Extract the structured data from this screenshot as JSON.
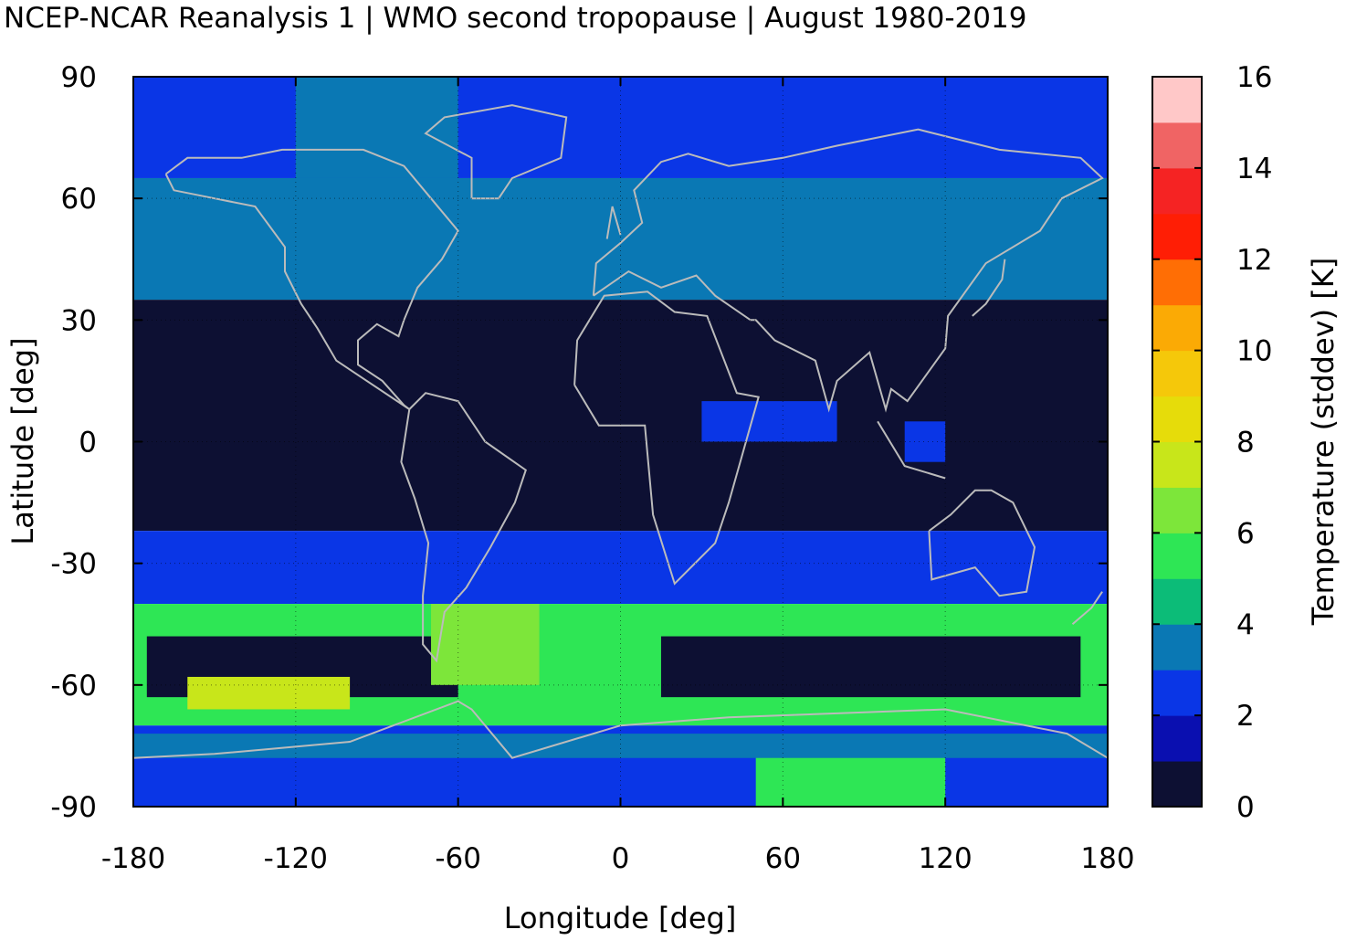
{
  "chart_data": {
    "type": "heatmap",
    "title": "NCEP-NCAR Reanalysis 1 | WMO second tropopause | August 1980-2019",
    "xlabel": "Longitude [deg]",
    "ylabel": "Latitude [deg]",
    "colorbar_label": "Temperature (stddev) [K]",
    "xlim": [
      -180,
      180
    ],
    "ylim": [
      -90,
      90
    ],
    "xticks": [
      "-180",
      "-120",
      "-60",
      "0",
      "60",
      "120",
      "180"
    ],
    "yticks": [
      "-90",
      "-60",
      "-30",
      "0",
      "30",
      "60",
      "90"
    ],
    "colorbar_ticks": [
      "0",
      "2",
      "4",
      "6",
      "8",
      "10",
      "12",
      "14",
      "16"
    ],
    "colorbar_range": [
      0,
      16
    ],
    "grid": true,
    "colormap": [
      "#0d1033",
      "#0a0fb0",
      "#0a36e6",
      "#0a78b4",
      "#0cbc78",
      "#2ee655",
      "#7de63a",
      "#c8e61a",
      "#e6dc0a",
      "#f5c80a",
      "#fbaa05",
      "#ff6e05",
      "#ff1e05",
      "#f52323",
      "#f06464",
      "#ffc8c8"
    ],
    "coastline_color": "#bbbbbb",
    "latitude_bands": [
      {
        "lat_range": [
          65,
          90
        ],
        "value": 2.4
      },
      {
        "lat_range": [
          35,
          65
        ],
        "value": 3.2
      },
      {
        "lat_range": [
          -22,
          35
        ],
        "value": 0.5
      },
      {
        "lat_range": [
          -40,
          -22
        ],
        "value": 2.5
      },
      {
        "lat_range": [
          -70,
          -40
        ],
        "value": 5.0
      },
      {
        "lat_range": [
          -90,
          -70
        ],
        "value": 2.5
      }
    ],
    "features": [
      {
        "lon_range": [
          50,
          120
        ],
        "lat_range": [
          -90,
          -73
        ],
        "value": 5.6
      },
      {
        "lon_range": [
          -175,
          -60
        ],
        "lat_range": [
          -63,
          -48
        ],
        "value": 0.8
      },
      {
        "lon_range": [
          15,
          170
        ],
        "lat_range": [
          -63,
          -48
        ],
        "value": 0.6
      },
      {
        "lon_range": [
          -160,
          -100
        ],
        "lat_range": [
          -66,
          -58
        ],
        "value": 7.2
      },
      {
        "lon_range": [
          -70,
          -30
        ],
        "lat_range": [
          -60,
          -40
        ],
        "value": 6.2
      },
      {
        "lon_range": [
          -180,
          180
        ],
        "lat_range": [
          -78,
          -72
        ],
        "value": 3.6
      },
      {
        "lon_range": [
          -120,
          -60
        ],
        "lat_range": [
          65,
          90
        ],
        "value": 3.5
      },
      {
        "lon_range": [
          30,
          80
        ],
        "lat_range": [
          0,
          10
        ],
        "value": 2.5
      },
      {
        "lon_range": [
          105,
          120
        ],
        "lat_range": [
          -5,
          5
        ],
        "value": 2.5
      }
    ]
  }
}
